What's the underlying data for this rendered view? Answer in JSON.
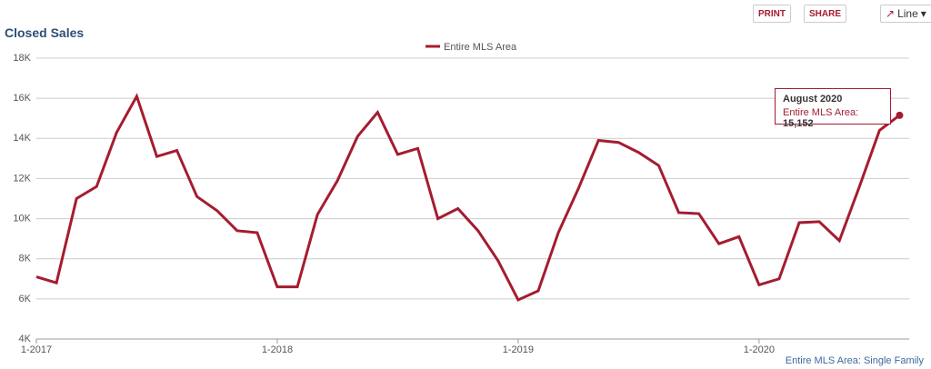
{
  "toolbar": {
    "print": "PRINT",
    "share": "SHARE",
    "view": "Line"
  },
  "footer": "Entire MLS Area: Single Family",
  "chart_data": {
    "type": "line",
    "title": "Closed Sales",
    "categories": [
      "1-2017",
      null,
      null,
      null,
      null,
      null,
      null,
      null,
      null,
      null,
      null,
      null,
      "1-2018",
      null,
      null,
      null,
      null,
      null,
      null,
      null,
      null,
      null,
      null,
      null,
      "1-2019",
      null,
      null,
      null,
      null,
      null,
      null,
      null,
      null,
      null,
      null,
      null,
      "1-2020",
      null,
      null,
      null,
      null,
      null,
      null,
      null
    ],
    "series": [
      {
        "name": "Entire MLS Area",
        "color": "#a51c30",
        "values": [
          7100,
          6800,
          11000,
          11600,
          14300,
          16100,
          13100,
          13400,
          11100,
          10400,
          9400,
          9300,
          6600,
          6600,
          10200,
          11900,
          14100,
          15300,
          13200,
          13500,
          10000,
          10500,
          9400,
          7900,
          5950,
          6400,
          9300,
          11500,
          13900,
          13800,
          13300,
          12650,
          10300,
          10250,
          8750,
          9100,
          6700,
          7000,
          9800,
          9850,
          8900,
          11600,
          14400,
          15152
        ],
        "value_labels": [
          null,
          null,
          null,
          null,
          null,
          null,
          null,
          null,
          null,
          null,
          null,
          null,
          null,
          null,
          null,
          null,
          null,
          null,
          null,
          null,
          null,
          null,
          null,
          null,
          null,
          null,
          null,
          null,
          null,
          null,
          null,
          null,
          null,
          null,
          null,
          null,
          null,
          null,
          null,
          null,
          null,
          null,
          null,
          "15,152"
        ]
      }
    ],
    "tooltip": {
      "title": "August 2020",
      "label": "Entire MLS Area:"
    },
    "ylim": [
      4000,
      18000
    ],
    "yticks": [
      {
        "value": 4000,
        "label": "4K"
      },
      {
        "value": 6000,
        "label": "6K"
      },
      {
        "value": 8000,
        "label": "8K"
      },
      {
        "value": 10000,
        "label": "10K"
      },
      {
        "value": 12000,
        "label": "12K"
      },
      {
        "value": 14000,
        "label": "14K"
      },
      {
        "value": 16000,
        "label": "16K"
      },
      {
        "value": 18000,
        "label": "18K"
      }
    ],
    "grid": true
  }
}
